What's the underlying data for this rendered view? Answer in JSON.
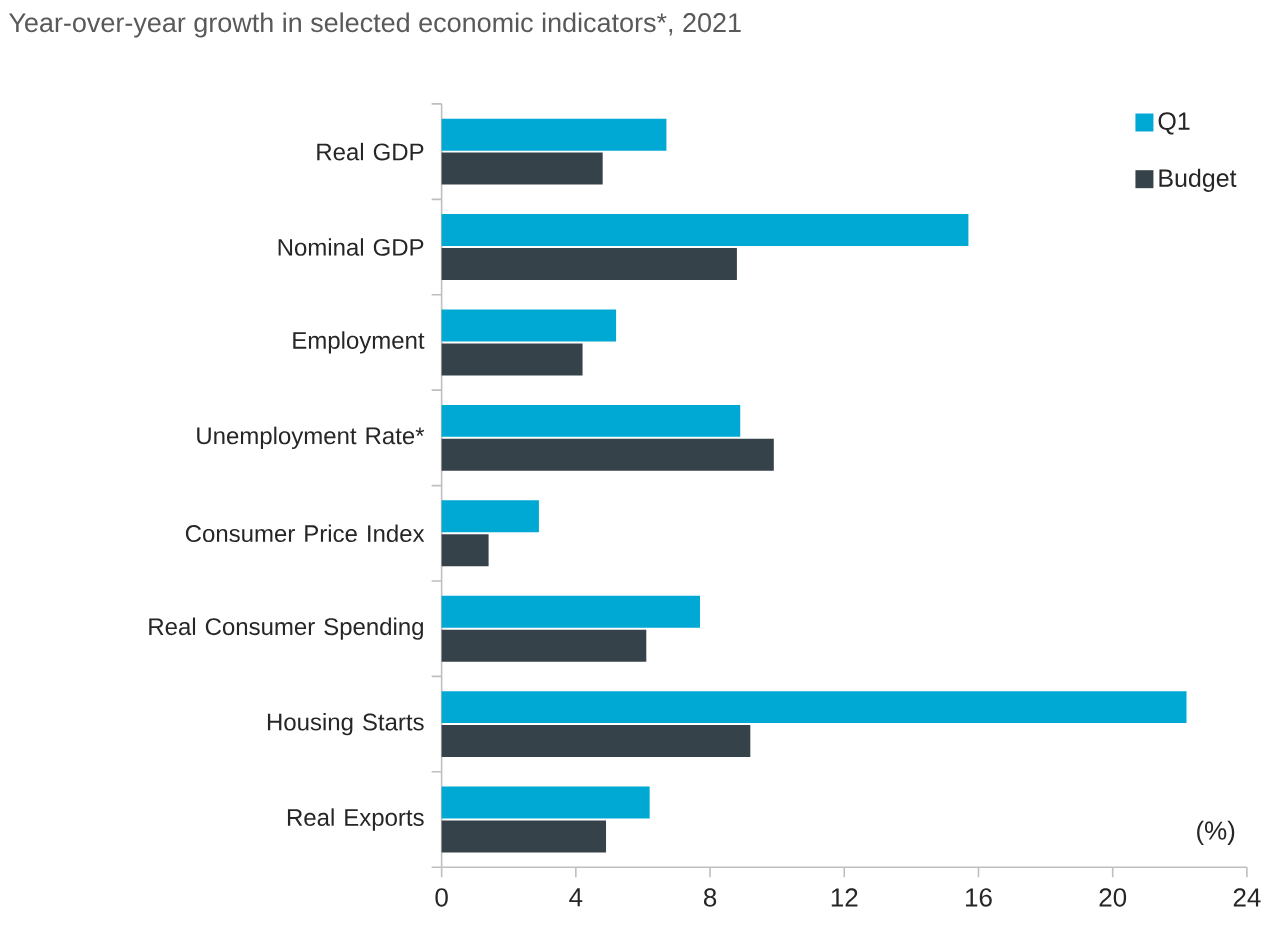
{
  "chart_data": {
    "type": "bar",
    "orientation": "horizontal",
    "title": "Year-over-year growth in selected economic indicators*, 2021",
    "categories": [
      "Real GDP",
      "Nominal GDP",
      "Employment",
      "Unemployment Rate*",
      "Consumer Price Index",
      "Real Consumer Spending",
      "Housing Starts",
      "Real Exports"
    ],
    "series": [
      {
        "name": "Q1",
        "color": "#00a9d4",
        "values": [
          6.7,
          15.7,
          5.2,
          8.9,
          2.9,
          7.7,
          22.2,
          6.2
        ]
      },
      {
        "name": "Budget",
        "color": "#36424a",
        "values": [
          4.8,
          8.8,
          4.2,
          9.9,
          1.4,
          6.1,
          9.2,
          4.9
        ]
      }
    ],
    "xlim": [
      0,
      24
    ],
    "xticks": [
      0,
      4,
      8,
      12,
      16,
      20,
      24
    ],
    "annotations": [
      "(%)"
    ],
    "legend": "top right",
    "grid": false
  }
}
